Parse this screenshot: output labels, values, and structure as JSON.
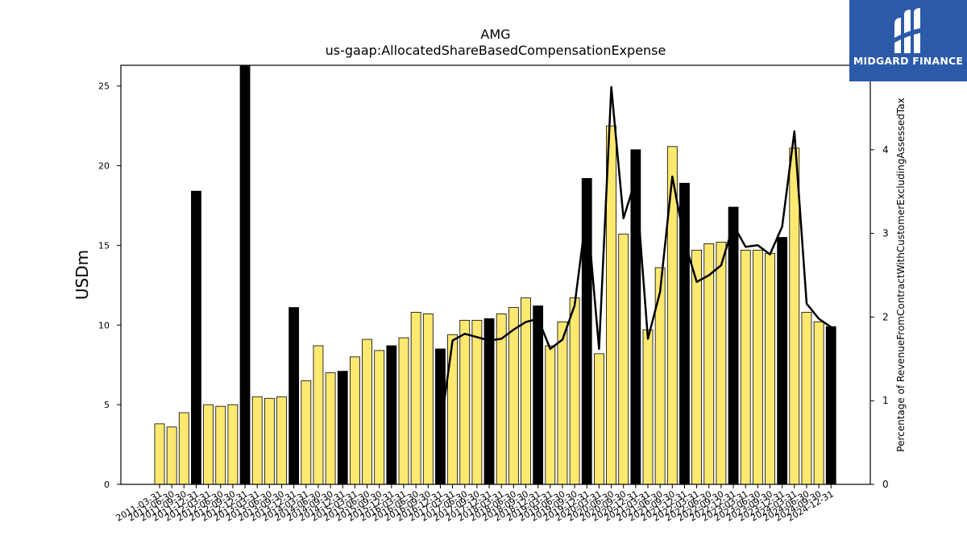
{
  "logo": {
    "text": "MIDGARD FINANCE",
    "bg_color": "#2b5aa8"
  },
  "chart_data": {
    "type": "bar",
    "title": "AMG",
    "subtitle": "us-gaap:AllocatedShareBasedCompensationExpense",
    "ylabel": "USDm",
    "y2label": "Percentage of RevenueFromContractWithCustomerExcludingAssessedTax",
    "ylim": [
      0,
      26.3
    ],
    "y2lim": [
      0,
      5.01
    ],
    "yticks": [
      0,
      5,
      10,
      15,
      20,
      25
    ],
    "y2ticks": [
      0,
      1,
      2,
      3,
      4
    ],
    "colors": {
      "quarter_bar": "#fde870",
      "year_end_bar": "#000000",
      "line": "#000000"
    },
    "categories": [
      "2011-03-31",
      "2011-06-30",
      "2011-09-30",
      "2011-12-31",
      "2012-03-31",
      "2012-06-30",
      "2012-09-30",
      "2012-12-31",
      "2013-03-31",
      "2013-06-30",
      "2013-09-30",
      "2013-12-31",
      "2014-03-31",
      "2014-06-30",
      "2014-09-30",
      "2014-12-31",
      "2015-03-31",
      "2015-06-30",
      "2015-09-30",
      "2015-12-31",
      "2016-03-31",
      "2016-06-30",
      "2016-09-30",
      "2016-12-31",
      "2017-03-31",
      "2017-06-30",
      "2017-09-30",
      "2017-12-31",
      "2018-03-31",
      "2018-06-30",
      "2018-09-30",
      "2018-12-31",
      "2019-03-31",
      "2019-06-30",
      "2019-09-30",
      "2019-12-31",
      "2020-03-31",
      "2020-06-30",
      "2020-09-30",
      "2020-12-31",
      "2021-03-31",
      "2021-06-30",
      "2021-09-30",
      "2021-12-31",
      "2022-03-31",
      "2022-06-30",
      "2022-09-30",
      "2022-12-31",
      "2023-03-31",
      "2023-06-30",
      "2023-09-30",
      "2023-12-31",
      "2024-03-31",
      "2024-06-30",
      "2024-09-30",
      "2024-12-31"
    ],
    "series": [
      {
        "type": "bar",
        "values": [
          3.8,
          3.6,
          4.5,
          18.4,
          5.0,
          4.9,
          5.0,
          26.3,
          5.5,
          5.4,
          5.5,
          11.1,
          6.5,
          8.7,
          7.0,
          7.1,
          8.0,
          9.1,
          8.4,
          8.7,
          9.2,
          10.8,
          10.7,
          8.5,
          9.4,
          10.3,
          10.3,
          10.4,
          10.7,
          11.1,
          11.7,
          11.2,
          8.7,
          10.2,
          11.7,
          19.2,
          8.2,
          22.5,
          15.7,
          21.0,
          9.7,
          13.6,
          21.2,
          18.9,
          14.7,
          15.1,
          15.2,
          17.4,
          14.7,
          14.7,
          14.5,
          15.5,
          21.1,
          10.8,
          10.2,
          9.9
        ]
      },
      {
        "type": "line",
        "values": [
          null,
          null,
          null,
          null,
          null,
          null,
          null,
          null,
          null,
          null,
          null,
          null,
          null,
          null,
          null,
          null,
          null,
          null,
          null,
          null,
          null,
          null,
          null,
          0.65,
          1.72,
          1.8,
          1.76,
          1.72,
          1.74,
          1.85,
          1.94,
          1.98,
          1.62,
          1.73,
          2.14,
          3.29,
          1.62,
          4.75,
          3.18,
          3.65,
          1.74,
          2.3,
          3.68,
          2.9,
          2.42,
          2.5,
          2.62,
          3.1,
          2.84,
          2.86,
          2.75,
          3.08,
          4.22,
          2.16,
          1.98,
          1.88
        ]
      }
    ]
  }
}
